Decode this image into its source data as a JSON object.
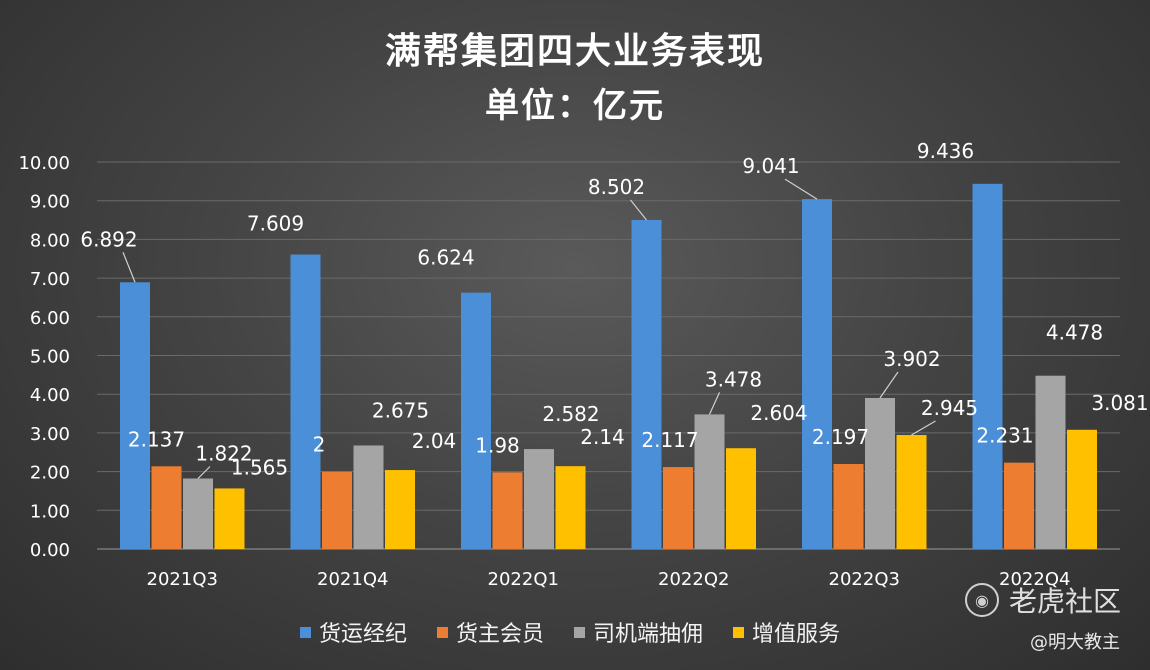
{
  "title_line1": "满帮集团四大业务表现",
  "title_line2": "单位：亿元",
  "watermark": {
    "brand": "老虎社区",
    "handle": "@明大教主",
    "icon": "tiger-logo-icon"
  },
  "chart_data": {
    "type": "bar",
    "title": "满帮集团四大业务表现",
    "subtitle": "单位：亿元",
    "categories": [
      "2021Q3",
      "2021Q4",
      "2022Q1",
      "2022Q2",
      "2022Q3",
      "2022Q4"
    ],
    "y_ticks": [
      "0.00",
      "1.00",
      "2.00",
      "3.00",
      "4.00",
      "5.00",
      "6.00",
      "7.00",
      "8.00",
      "9.00",
      "10.00"
    ],
    "ylim": [
      0,
      10
    ],
    "grid": true,
    "legend_position": "bottom",
    "series": [
      {
        "name": "货运经纪",
        "color": "#4a8fd8",
        "values": [
          6.892,
          7.609,
          6.624,
          8.502,
          9.041,
          9.436
        ],
        "labels": [
          "6.892",
          "7.609",
          "6.624",
          "8.502",
          "9.041",
          "9.436"
        ]
      },
      {
        "name": "货主会员",
        "color": "#ed7d31",
        "values": [
          2.137,
          2,
          1.98,
          2.117,
          2.197,
          2.231
        ],
        "labels": [
          "2.137",
          "2",
          "1.98",
          "2.117",
          "2.197",
          "2.231"
        ]
      },
      {
        "name": "司机端抽佣",
        "color": "#a5a5a5",
        "values": [
          1.822,
          2.675,
          2.582,
          3.478,
          3.902,
          4.478
        ],
        "labels": [
          "1.822",
          "2.675",
          "2.582",
          "3.478",
          "3.902",
          "4.478"
        ]
      },
      {
        "name": "增值服务",
        "color": "#ffc000",
        "values": [
          1.565,
          2.04,
          2.14,
          2.604,
          2.945,
          3.081
        ],
        "labels": [
          "1.565",
          "2.04",
          "2.14",
          "2.604",
          "2.945",
          "3.081"
        ]
      }
    ]
  }
}
